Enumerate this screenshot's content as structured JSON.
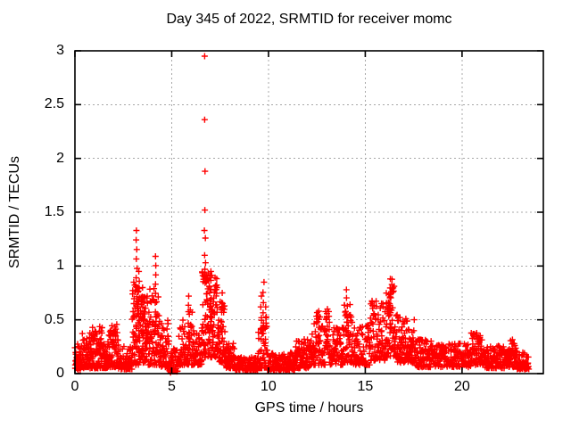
{
  "chart_data": {
    "type": "scatter",
    "title": "Day 345 of 2022, SRMTID for receiver momc",
    "xlabel": "GPS time / hours",
    "ylabel": "SRMTID / TECUs",
    "marker": "plus",
    "marker_color": "#ff0000",
    "frame_color": "#000000",
    "grid": "dashed",
    "grid_color": "#a8a8a8",
    "legend": "none",
    "xlim": [
      0,
      24.2
    ],
    "ylim": [
      0,
      3
    ],
    "xticks": [
      0,
      5,
      10,
      15,
      20
    ],
    "xtick_labels": [
      "0",
      "5",
      "10",
      "15",
      "20"
    ],
    "yticks": [
      0,
      0.5,
      1,
      1.5,
      2,
      2.5,
      3
    ],
    "ytick_labels": [
      "0",
      "0.5",
      "1",
      "1.5",
      "2",
      "2.5",
      "3"
    ],
    "max_point": [
      6.7,
      2.95
    ],
    "outliers": [
      [
        6.7,
        2.95
      ],
      [
        6.7,
        2.36
      ],
      [
        6.72,
        1.88
      ],
      [
        6.71,
        1.52
      ],
      [
        6.69,
        1.33
      ],
      [
        6.74,
        1.26
      ],
      [
        6.7,
        1.1
      ],
      [
        6.75,
        1.03
      ],
      [
        6.71,
        0.97
      ],
      [
        6.68,
        0.9
      ]
    ],
    "streaks": [
      [
        3.18,
        0.45,
        1.33,
        11
      ],
      [
        3.3,
        0.4,
        0.95,
        7
      ],
      [
        3.52,
        0.35,
        0.8,
        6
      ],
      [
        4.18,
        0.4,
        1.09,
        9
      ],
      [
        4.97,
        0.01,
        0.1,
        4
      ],
      [
        5.88,
        0.3,
        0.72,
        6
      ],
      [
        7.02,
        0.45,
        0.95,
        7
      ],
      [
        7.58,
        0.3,
        0.75,
        6
      ],
      [
        9.62,
        0.22,
        0.72,
        6
      ],
      [
        9.74,
        0.28,
        0.85,
        7
      ],
      [
        9.86,
        0.22,
        0.62,
        5
      ],
      [
        12.62,
        0.28,
        0.58,
        5
      ],
      [
        13.02,
        0.28,
        0.6,
        5
      ],
      [
        14.05,
        0.4,
        0.78,
        6
      ],
      [
        16.28,
        0.38,
        0.88,
        7
      ]
    ],
    "noise_segments": [
      [
        0.0,
        0.35,
        45,
        0.03,
        0.28,
        1.6
      ],
      [
        0.35,
        0.85,
        65,
        0.05,
        0.38,
        1.6
      ],
      [
        0.85,
        1.45,
        75,
        0.05,
        0.44,
        1.7
      ],
      [
        1.45,
        1.75,
        38,
        0.05,
        0.3,
        1.7
      ],
      [
        1.75,
        2.25,
        65,
        0.06,
        0.46,
        1.7
      ],
      [
        2.25,
        2.95,
        75,
        0.04,
        0.26,
        1.7
      ],
      [
        2.95,
        3.35,
        65,
        0.08,
        0.85,
        1.5
      ],
      [
        3.35,
        3.75,
        65,
        0.1,
        0.75,
        1.5
      ],
      [
        3.75,
        4.35,
        75,
        0.08,
        0.8,
        1.6
      ],
      [
        4.35,
        4.85,
        55,
        0.06,
        0.5,
        1.7
      ],
      [
        4.85,
        5.35,
        48,
        0.02,
        0.25,
        1.7
      ],
      [
        5.35,
        6.1,
        75,
        0.08,
        0.6,
        1.7
      ],
      [
        6.1,
        6.55,
        48,
        0.08,
        0.4,
        1.7
      ],
      [
        6.55,
        6.9,
        55,
        0.15,
        0.95,
        1.2
      ],
      [
        6.9,
        7.35,
        75,
        0.15,
        0.92,
        1.3
      ],
      [
        7.35,
        7.75,
        55,
        0.1,
        0.7,
        1.5
      ],
      [
        7.75,
        8.25,
        55,
        0.05,
        0.3,
        1.7
      ],
      [
        8.25,
        9.45,
        105,
        0.03,
        0.16,
        1.5
      ],
      [
        9.45,
        9.95,
        45,
        0.05,
        0.55,
        1.7
      ],
      [
        9.95,
        11.35,
        125,
        0.03,
        0.2,
        1.6
      ],
      [
        11.35,
        12.25,
        85,
        0.05,
        0.32,
        1.6
      ],
      [
        12.25,
        13.25,
        95,
        0.08,
        0.58,
        1.6
      ],
      [
        13.25,
        13.85,
        55,
        0.08,
        0.45,
        1.6
      ],
      [
        13.85,
        14.35,
        55,
        0.1,
        0.65,
        1.5
      ],
      [
        14.35,
        15.25,
        85,
        0.08,
        0.45,
        1.6
      ],
      [
        15.25,
        16.05,
        85,
        0.12,
        0.68,
        1.4
      ],
      [
        16.05,
        16.55,
        65,
        0.15,
        0.88,
        1.3
      ],
      [
        16.55,
        17.15,
        65,
        0.1,
        0.55,
        1.5
      ],
      [
        17.15,
        17.55,
        45,
        0.1,
        0.52,
        1.5
      ],
      [
        17.55,
        18.55,
        95,
        0.06,
        0.33,
        1.6
      ],
      [
        18.55,
        20.45,
        160,
        0.06,
        0.28,
        1.5
      ],
      [
        20.45,
        21.15,
        75,
        0.08,
        0.38,
        1.5
      ],
      [
        21.15,
        22.35,
        105,
        0.05,
        0.26,
        1.5
      ],
      [
        22.35,
        22.85,
        55,
        0.06,
        0.32,
        1.5
      ],
      [
        22.85,
        23.45,
        55,
        0.04,
        0.2,
        1.5
      ]
    ],
    "seed": 73
  }
}
